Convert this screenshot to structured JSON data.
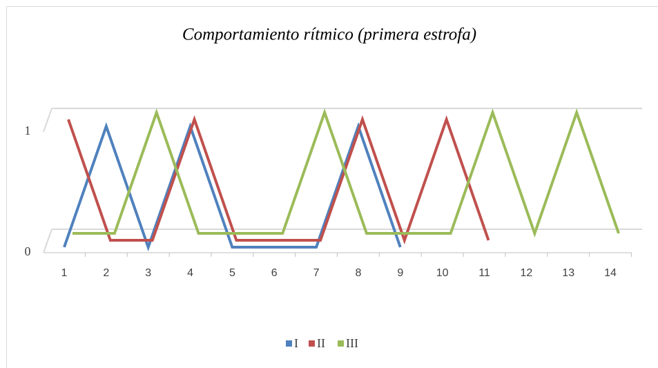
{
  "chart_data": {
    "type": "line",
    "title": "Comportamiento rítmico (primera estrofa)",
    "categories": [
      "1",
      "2",
      "3",
      "4",
      "5",
      "6",
      "7",
      "8",
      "9",
      "10",
      "11",
      "12",
      "13",
      "14"
    ],
    "series": [
      {
        "name": "I",
        "color": "#4f81bd",
        "values": [
          0,
          1,
          0,
          1,
          0,
          0,
          0,
          1,
          0,
          null,
          null,
          null,
          null,
          null
        ]
      },
      {
        "name": "II",
        "color": "#c0504d",
        "values": [
          1,
          0,
          0,
          1,
          0,
          0,
          0,
          1,
          0,
          1,
          0,
          null,
          null,
          null
        ]
      },
      {
        "name": "III",
        "color": "#9bbb59",
        "values": [
          0,
          0,
          1,
          0,
          0,
          0,
          1,
          0,
          0,
          0,
          1,
          0,
          1,
          0
        ]
      }
    ],
    "ylim": [
      0,
      1
    ],
    "yticks": [
      0,
      1
    ],
    "grid": true,
    "legend": "bottom"
  }
}
